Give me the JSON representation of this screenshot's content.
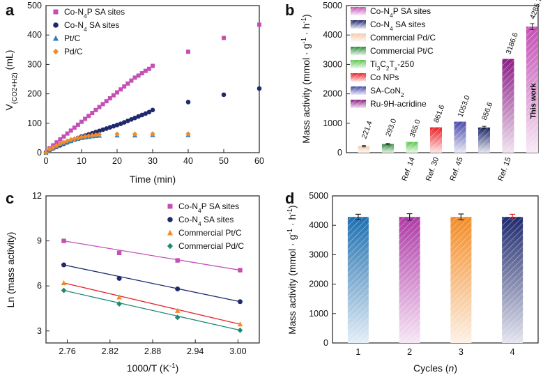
{
  "chart_data": [
    {
      "panel": "a",
      "type": "scatter",
      "xlabel": "Time (min)",
      "ylabel": "V(CO2+H2) (mL)",
      "xlim": [
        0,
        60
      ],
      "ylim": [
        0,
        500
      ],
      "xticks": [
        0,
        10,
        20,
        30,
        40,
        50,
        60
      ],
      "yticks": [
        0,
        100,
        200,
        300,
        400,
        500
      ],
      "legend_position": "top-left",
      "series": [
        {
          "name": "Co-N4P SA sites",
          "color": "#c44fb5",
          "marker": "square",
          "x": [
            0,
            1,
            2,
            3,
            4,
            5,
            6,
            7,
            8,
            9,
            10,
            11,
            12,
            13,
            14,
            15,
            16,
            17,
            18,
            19,
            20,
            21,
            22,
            23,
            24,
            25,
            26,
            27,
            28,
            29,
            30,
            40,
            50,
            60
          ],
          "y": [
            0,
            15,
            25,
            35,
            45,
            55,
            65,
            75,
            85,
            95,
            105,
            115,
            125,
            135,
            145,
            155,
            165,
            175,
            185,
            195,
            205,
            215,
            225,
            235,
            245,
            255,
            262,
            270,
            278,
            285,
            295,
            343,
            390,
            435
          ]
        },
        {
          "name": "Co-N4 SA sites",
          "color": "#1f2a6e",
          "marker": "circle",
          "x": [
            0,
            1,
            2,
            3,
            4,
            5,
            6,
            7,
            8,
            9,
            10,
            11,
            12,
            13,
            14,
            15,
            16,
            17,
            18,
            19,
            20,
            21,
            22,
            23,
            24,
            25,
            26,
            27,
            28,
            29,
            30,
            40,
            50,
            60
          ],
          "y": [
            0,
            10,
            15,
            20,
            25,
            30,
            35,
            40,
            45,
            50,
            55,
            58,
            62,
            66,
            70,
            74,
            78,
            82,
            86,
            90,
            94,
            98,
            103,
            108,
            113,
            118,
            123,
            128,
            133,
            138,
            145,
            172,
            197,
            218
          ]
        },
        {
          "name": "Pt/C",
          "color": "#2a7fc0",
          "marker": "triangle",
          "x": [
            0,
            1,
            2,
            3,
            4,
            5,
            6,
            7,
            8,
            9,
            10,
            11,
            12,
            13,
            14,
            15,
            20,
            25,
            30,
            40
          ],
          "y": [
            0,
            10,
            16,
            22,
            28,
            32,
            36,
            40,
            44,
            47,
            50,
            52,
            54,
            56,
            57,
            58,
            59,
            59,
            60,
            60
          ]
        },
        {
          "name": "Pd/C",
          "color": "#f28c28",
          "marker": "diamond",
          "x": [
            0,
            1,
            2,
            3,
            4,
            5,
            6,
            7,
            8,
            9,
            10,
            11,
            12,
            13,
            14,
            15,
            20,
            25,
            30,
            40
          ],
          "y": [
            0,
            12,
            18,
            24,
            30,
            35,
            40,
            44,
            47,
            50,
            53,
            55,
            57,
            59,
            60,
            62,
            63,
            63,
            64,
            64
          ]
        }
      ]
    },
    {
      "panel": "b",
      "type": "bar",
      "ylabel": "Mass activity (mmol · g-1 · h-1)",
      "ylim": [
        0,
        5000
      ],
      "yticks": [
        0,
        1000,
        2000,
        3000,
        4000,
        5000
      ],
      "series": [
        {
          "name": "Commercial Pd/C",
          "value": 221.4,
          "label": "221.4",
          "ref": "",
          "color": "#f4c9a8",
          "error": 25
        },
        {
          "name": "Commercial Pt/C",
          "value": 293.0,
          "label": "293.0",
          "ref": "",
          "color": "#2e8b3a",
          "error": 25
        },
        {
          "name": "Ti3C2Tx-250",
          "value": 365.0,
          "label": "365.0",
          "ref": "Ref. 14",
          "color": "#5ec44f",
          "error": 0
        },
        {
          "name": "Co NPs",
          "value": 861.6,
          "label": "861.6",
          "ref": "Ref. 30",
          "color": "#e8232a",
          "error": 0
        },
        {
          "name": "SA-CoN2",
          "value": 1053.0,
          "label": "1053.0",
          "ref": "Ref. 45",
          "color": "#4a4aa8",
          "error": 0
        },
        {
          "name": "Co-N4 SA sites",
          "value": 856.6,
          "label": "856.6",
          "ref": "",
          "color": "#1f2a6e",
          "error": 40
        },
        {
          "name": "Ru-9H-acridine",
          "value": 3186.6,
          "label": "3186.6",
          "ref": "Ref. 15",
          "color": "#8a1f85",
          "error": 0
        },
        {
          "name": "Co-N4P SA sites",
          "value": 4285.7,
          "label": "4285.7",
          "ref": "",
          "color": "#c44fb5",
          "error": 100
        }
      ],
      "this_work_label": "This work",
      "legend_order": [
        "Co-N4P SA sites",
        "Co-N4 SA sites",
        "Commercial Pd/C",
        "Commercial Pt/C",
        "Ti3C2Tx-250",
        "Co NPs",
        "SA-CoN2",
        "Ru-9H-acridine"
      ]
    },
    {
      "panel": "c",
      "type": "scatter",
      "xlabel": "1000/T (K-1)",
      "ylabel": "Ln (mass activity)",
      "xlim": [
        2.73,
        3.03
      ],
      "ylim": [
        2.2,
        12
      ],
      "xticks": [
        2.76,
        2.82,
        2.88,
        2.94,
        3.0
      ],
      "yticks": [
        3,
        6,
        9,
        12
      ],
      "legend_position": "top-right",
      "series": [
        {
          "name": "Co-N4P SA sites",
          "color": "#c44fb5",
          "marker": "square",
          "x": [
            2.755,
            2.833,
            2.915,
            3.003
          ],
          "y": [
            9.0,
            8.2,
            7.7,
            7.05
          ],
          "fit": [
            9.0,
            7.05
          ]
        },
        {
          "name": "Co-N4 SA sites",
          "color": "#1f2a6e",
          "marker": "circle",
          "x": [
            2.755,
            2.833,
            2.915,
            3.003
          ],
          "y": [
            7.4,
            6.5,
            5.8,
            4.95
          ],
          "fit": [
            7.4,
            4.95
          ]
        },
        {
          "name": "Commercial Pt/C",
          "color": "#f28c28",
          "marker": "triangle",
          "x": [
            2.755,
            2.833,
            2.915,
            3.003
          ],
          "y": [
            6.2,
            5.25,
            4.35,
            3.45
          ],
          "fit": [
            6.2,
            3.45
          ],
          "fit_color": "#e8232a"
        },
        {
          "name": "Commercial Pd/C",
          "color": "#1d8a72",
          "marker": "diamond",
          "x": [
            2.755,
            2.833,
            2.915,
            3.003
          ],
          "y": [
            5.7,
            4.8,
            3.9,
            3.05
          ],
          "fit": [
            5.7,
            3.05
          ]
        }
      ]
    },
    {
      "panel": "d",
      "type": "bar",
      "xlabel": "Cycles (n)",
      "ylabel": "Mass activity (mmol · g-1 · h-1)",
      "ylim": [
        0,
        5000
      ],
      "yticks": [
        0,
        1000,
        2000,
        3000,
        4000,
        5000
      ],
      "categories": [
        "1",
        "2",
        "3",
        "4"
      ],
      "values": [
        4285,
        4285,
        4285,
        4285
      ],
      "errors": [
        90,
        110,
        100,
        90
      ],
      "colors": [
        "#1f6fb0",
        "#b03aa8",
        "#f28c28",
        "#1f2a6e"
      ]
    }
  ],
  "panel_labels": [
    "a",
    "b",
    "c",
    "d"
  ],
  "sub": {
    "co2h2": "(CO2+H2)",
    "n4": "4",
    "x": "x",
    "neg1": "-1",
    "two": "2"
  }
}
